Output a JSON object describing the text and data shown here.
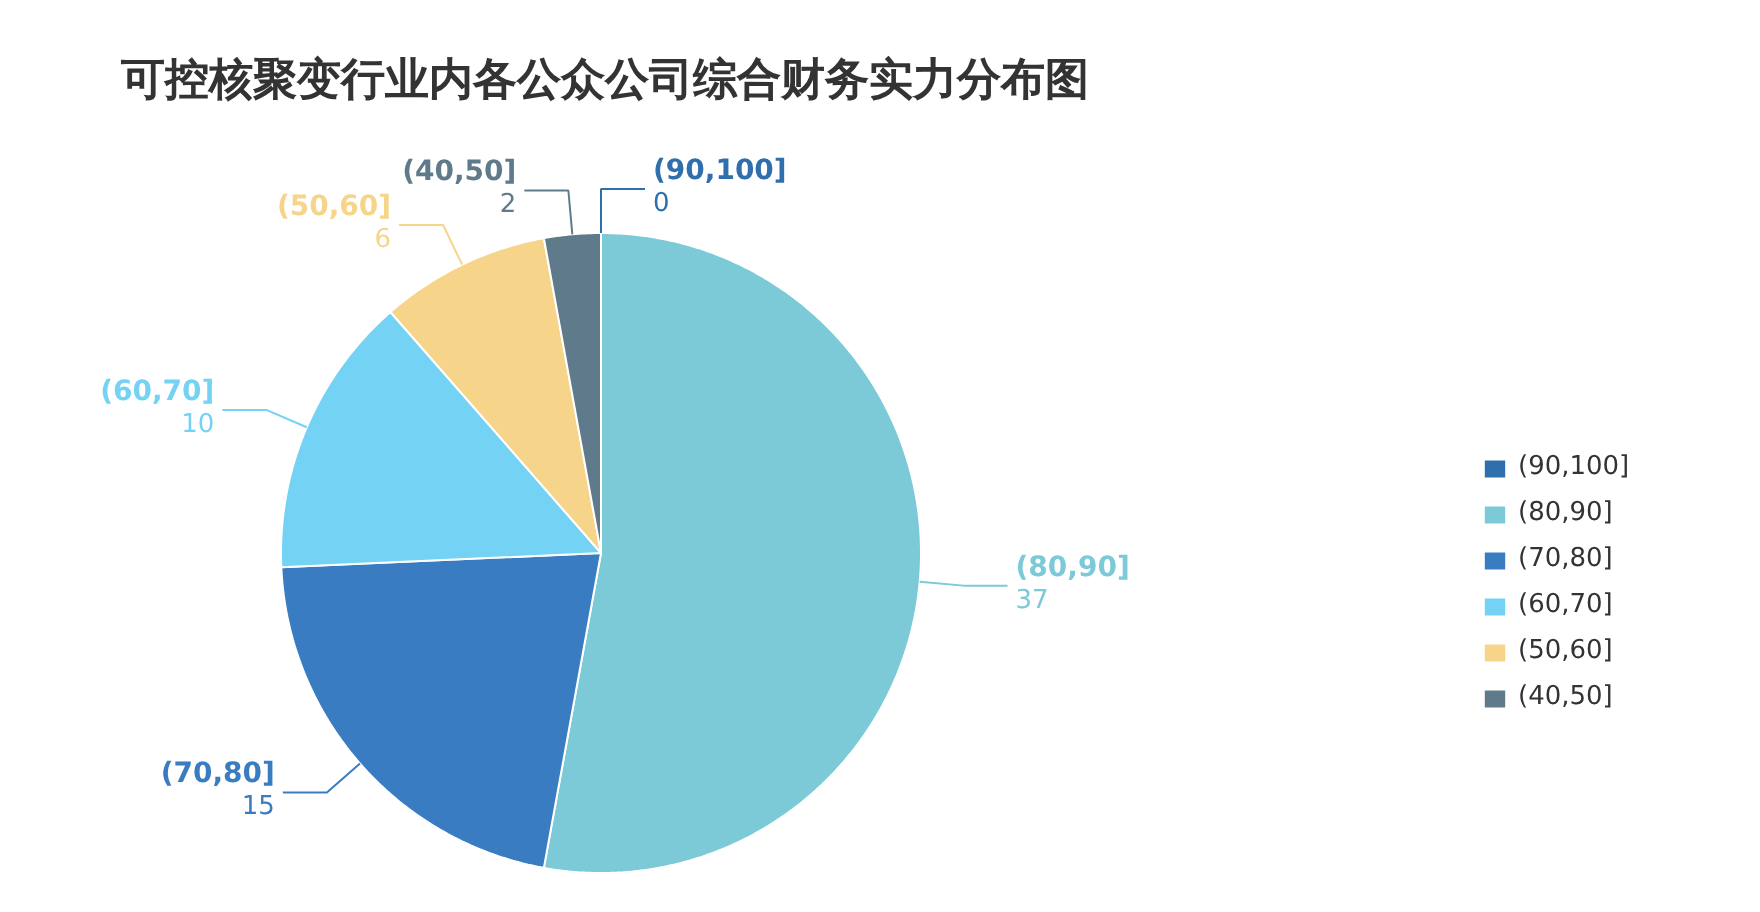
{
  "chart_data": {
    "type": "pie",
    "title": "可控核聚变行业内各公众公司综合财务实力分布图",
    "categories": [
      "(90,100]",
      "(80,90]",
      "(70,80]",
      "(60,70]",
      "(50,60]",
      "(40,50]"
    ],
    "values": [
      0,
      37,
      15,
      10,
      6,
      2
    ],
    "colors": [
      "#2f6fae",
      "#7cc9d8",
      "#3a7cc1",
      "#74d3f4",
      "#f6d489",
      "#5f7b8b"
    ],
    "data_labels": true,
    "value_labels": [
      "0",
      "37",
      "15",
      "10",
      "6",
      "2"
    ],
    "legend": "right"
  }
}
